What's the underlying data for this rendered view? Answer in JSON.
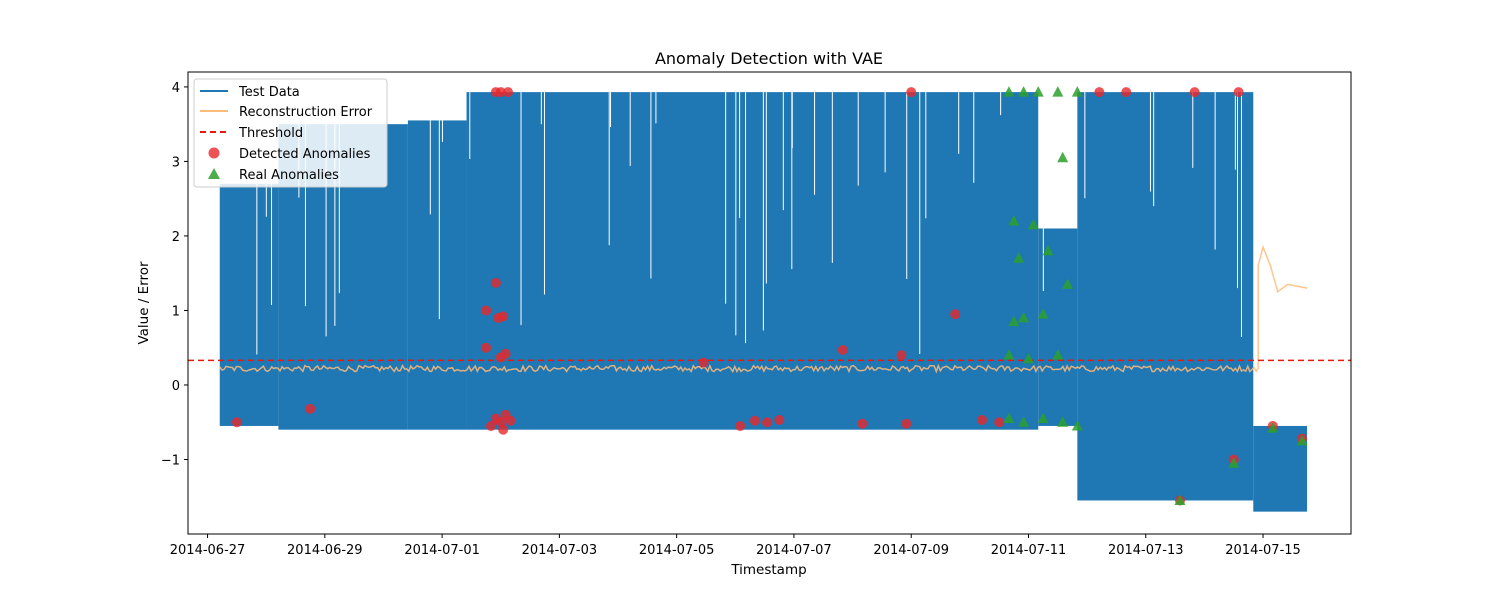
{
  "chart_data": {
    "type": "line",
    "title": "Anomaly Detection with VAE",
    "xlabel": "Timestamp",
    "ylabel": "Value / Error",
    "x_tick_labels": [
      "2014-06-27",
      "2014-06-29",
      "2014-07-01",
      "2014-07-03",
      "2014-07-05",
      "2014-07-07",
      "2014-07-09",
      "2014-07-11",
      "2014-07-13",
      "2014-07-15"
    ],
    "xlim": [
      "2014-06-26T16:00",
      "2014-07-16T12:00"
    ],
    "ylim": [
      -2.0,
      4.2
    ],
    "y_ticks": [
      -1,
      0,
      1,
      2,
      3,
      4
    ],
    "y_tick_labels": [
      "−1",
      "0",
      "1",
      "2",
      "3",
      "4"
    ],
    "grid": false,
    "legend": {
      "position": "upper left",
      "entries": [
        "Test Data",
        "Reconstruction Error",
        "Threshold",
        "Detected Anomalies",
        "Real Anomalies"
      ]
    },
    "colors": {
      "test_data": "#1f77b4",
      "reconstruction_error": "#ffbb78",
      "threshold": "#e8190c",
      "detected": "#e8272b",
      "real": "#2ca02c"
    },
    "series": [
      {
        "name": "Test Data",
        "style": "line",
        "segments": [
          {
            "x_start": "2014-06-27T05:00",
            "x_end": "2014-06-28T05:00",
            "low": -0.55,
            "high": 2.7
          },
          {
            "x_start": "2014-06-28T05:00",
            "x_end": "2014-06-30T10:00",
            "low": -0.6,
            "high": 3.5
          },
          {
            "x_start": "2014-06-30T10:00",
            "x_end": "2014-07-01T10:00",
            "low": -0.6,
            "high": 3.55
          },
          {
            "x_start": "2014-07-01T10:00",
            "x_end": "2014-07-11T04:00",
            "low": -0.6,
            "high": 3.93
          },
          {
            "x_start": "2014-07-11T04:00",
            "x_end": "2014-07-11T20:00",
            "low": -0.55,
            "high": 2.1
          },
          {
            "x_start": "2014-07-11T20:00",
            "x_end": "2014-07-14T20:00",
            "low": -1.55,
            "high": 3.93
          },
          {
            "x_start": "2014-07-14T20:00",
            "x_end": "2014-07-15T18:00",
            "low": -1.7,
            "high": -0.55
          }
        ]
      },
      {
        "name": "Reconstruction Error",
        "style": "line",
        "baseline_level": 0.22,
        "tail": [
          {
            "x": "2014-07-14T22:00",
            "y": 1.6
          },
          {
            "x": "2014-07-15T00:00",
            "y": 1.85
          },
          {
            "x": "2014-07-15T03:00",
            "y": 1.6
          },
          {
            "x": "2014-07-15T06:00",
            "y": 1.25
          },
          {
            "x": "2014-07-15T10:00",
            "y": 1.35
          },
          {
            "x": "2014-07-15T18:00",
            "y": 1.3
          }
        ]
      },
      {
        "name": "Threshold",
        "style": "dashed-hline",
        "y": 0.33
      },
      {
        "name": "Detected Anomalies",
        "style": "scatter-circle",
        "points": [
          {
            "x": "2014-06-27T12:00",
            "y": -0.5
          },
          {
            "x": "2014-06-28T18:00",
            "y": -0.32
          },
          {
            "x": "2014-07-01T18:00",
            "y": 1.0
          },
          {
            "x": "2014-07-01T18:00",
            "y": 0.5
          },
          {
            "x": "2014-07-01T22:00",
            "y": 3.93
          },
          {
            "x": "2014-07-02T00:00",
            "y": 3.93
          },
          {
            "x": "2014-07-02T03:00",
            "y": 3.93
          },
          {
            "x": "2014-07-01T22:00",
            "y": 1.37
          },
          {
            "x": "2014-07-01T23:00",
            "y": 0.9
          },
          {
            "x": "2014-07-02T01:00",
            "y": 0.92
          },
          {
            "x": "2014-07-02T00:00",
            "y": 0.37
          },
          {
            "x": "2014-07-02T02:00",
            "y": 0.42
          },
          {
            "x": "2014-07-01T22:00",
            "y": -0.45
          },
          {
            "x": "2014-07-02T00:00",
            "y": -0.5
          },
          {
            "x": "2014-07-02T02:00",
            "y": -0.4
          },
          {
            "x": "2014-07-02T04:00",
            "y": -0.48
          },
          {
            "x": "2014-07-01T20:00",
            "y": -0.55
          },
          {
            "x": "2014-07-02T01:00",
            "y": -0.6
          },
          {
            "x": "2014-07-05T11:00",
            "y": 0.3
          },
          {
            "x": "2014-07-06T02:00",
            "y": -0.55
          },
          {
            "x": "2014-07-06T08:00",
            "y": -0.48
          },
          {
            "x": "2014-07-06T13:00",
            "y": -0.5
          },
          {
            "x": "2014-07-06T18:00",
            "y": -0.47
          },
          {
            "x": "2014-07-07T20:00",
            "y": 0.47
          },
          {
            "x": "2014-07-08T04:00",
            "y": -0.52
          },
          {
            "x": "2014-07-08T20:00",
            "y": 0.4
          },
          {
            "x": "2014-07-08T22:00",
            "y": -0.52
          },
          {
            "x": "2014-07-09T00:00",
            "y": 3.93
          },
          {
            "x": "2014-07-09T18:00",
            "y": 0.95
          },
          {
            "x": "2014-07-10T05:00",
            "y": -0.47
          },
          {
            "x": "2014-07-10T12:00",
            "y": -0.5
          },
          {
            "x": "2014-07-12T05:00",
            "y": 3.93
          },
          {
            "x": "2014-07-12T16:00",
            "y": 3.93
          },
          {
            "x": "2014-07-13T20:00",
            "y": 3.93
          },
          {
            "x": "2014-07-14T14:00",
            "y": 3.93
          },
          {
            "x": "2014-07-13T14:00",
            "y": -1.55
          },
          {
            "x": "2014-07-14T12:00",
            "y": -1.0
          },
          {
            "x": "2014-07-15T04:00",
            "y": -0.55
          },
          {
            "x": "2014-07-15T16:00",
            "y": -0.72
          }
        ]
      },
      {
        "name": "Real Anomalies",
        "style": "scatter-triangle",
        "points": [
          {
            "x": "2014-07-10T16:00",
            "y": 3.93
          },
          {
            "x": "2014-07-10T22:00",
            "y": 3.93
          },
          {
            "x": "2014-07-11T04:00",
            "y": 3.93
          },
          {
            "x": "2014-07-11T12:00",
            "y": 3.93
          },
          {
            "x": "2014-07-11T20:00",
            "y": 3.93
          },
          {
            "x": "2014-07-10T18:00",
            "y": 2.2
          },
          {
            "x": "2014-07-10T20:00",
            "y": 1.7
          },
          {
            "x": "2014-07-11T02:00",
            "y": 2.15
          },
          {
            "x": "2014-07-11T08:00",
            "y": 1.8
          },
          {
            "x": "2014-07-11T14:00",
            "y": 3.05
          },
          {
            "x": "2014-07-11T16:00",
            "y": 1.35
          },
          {
            "x": "2014-07-10T18:00",
            "y": 0.85
          },
          {
            "x": "2014-07-10T22:00",
            "y": 0.9
          },
          {
            "x": "2014-07-11T06:00",
            "y": 0.95
          },
          {
            "x": "2014-07-10T16:00",
            "y": 0.4
          },
          {
            "x": "2014-07-11T00:00",
            "y": 0.35
          },
          {
            "x": "2014-07-11T12:00",
            "y": 0.4
          },
          {
            "x": "2014-07-10T16:00",
            "y": -0.45
          },
          {
            "x": "2014-07-10T22:00",
            "y": -0.5
          },
          {
            "x": "2014-07-11T06:00",
            "y": -0.45
          },
          {
            "x": "2014-07-11T14:00",
            "y": -0.5
          },
          {
            "x": "2014-07-11T20:00",
            "y": -0.55
          },
          {
            "x": "2014-07-13T14:00",
            "y": -1.55
          },
          {
            "x": "2014-07-14T12:00",
            "y": -1.05
          },
          {
            "x": "2014-07-15T04:00",
            "y": -0.58
          },
          {
            "x": "2014-07-15T16:00",
            "y": -0.75
          }
        ]
      }
    ]
  }
}
